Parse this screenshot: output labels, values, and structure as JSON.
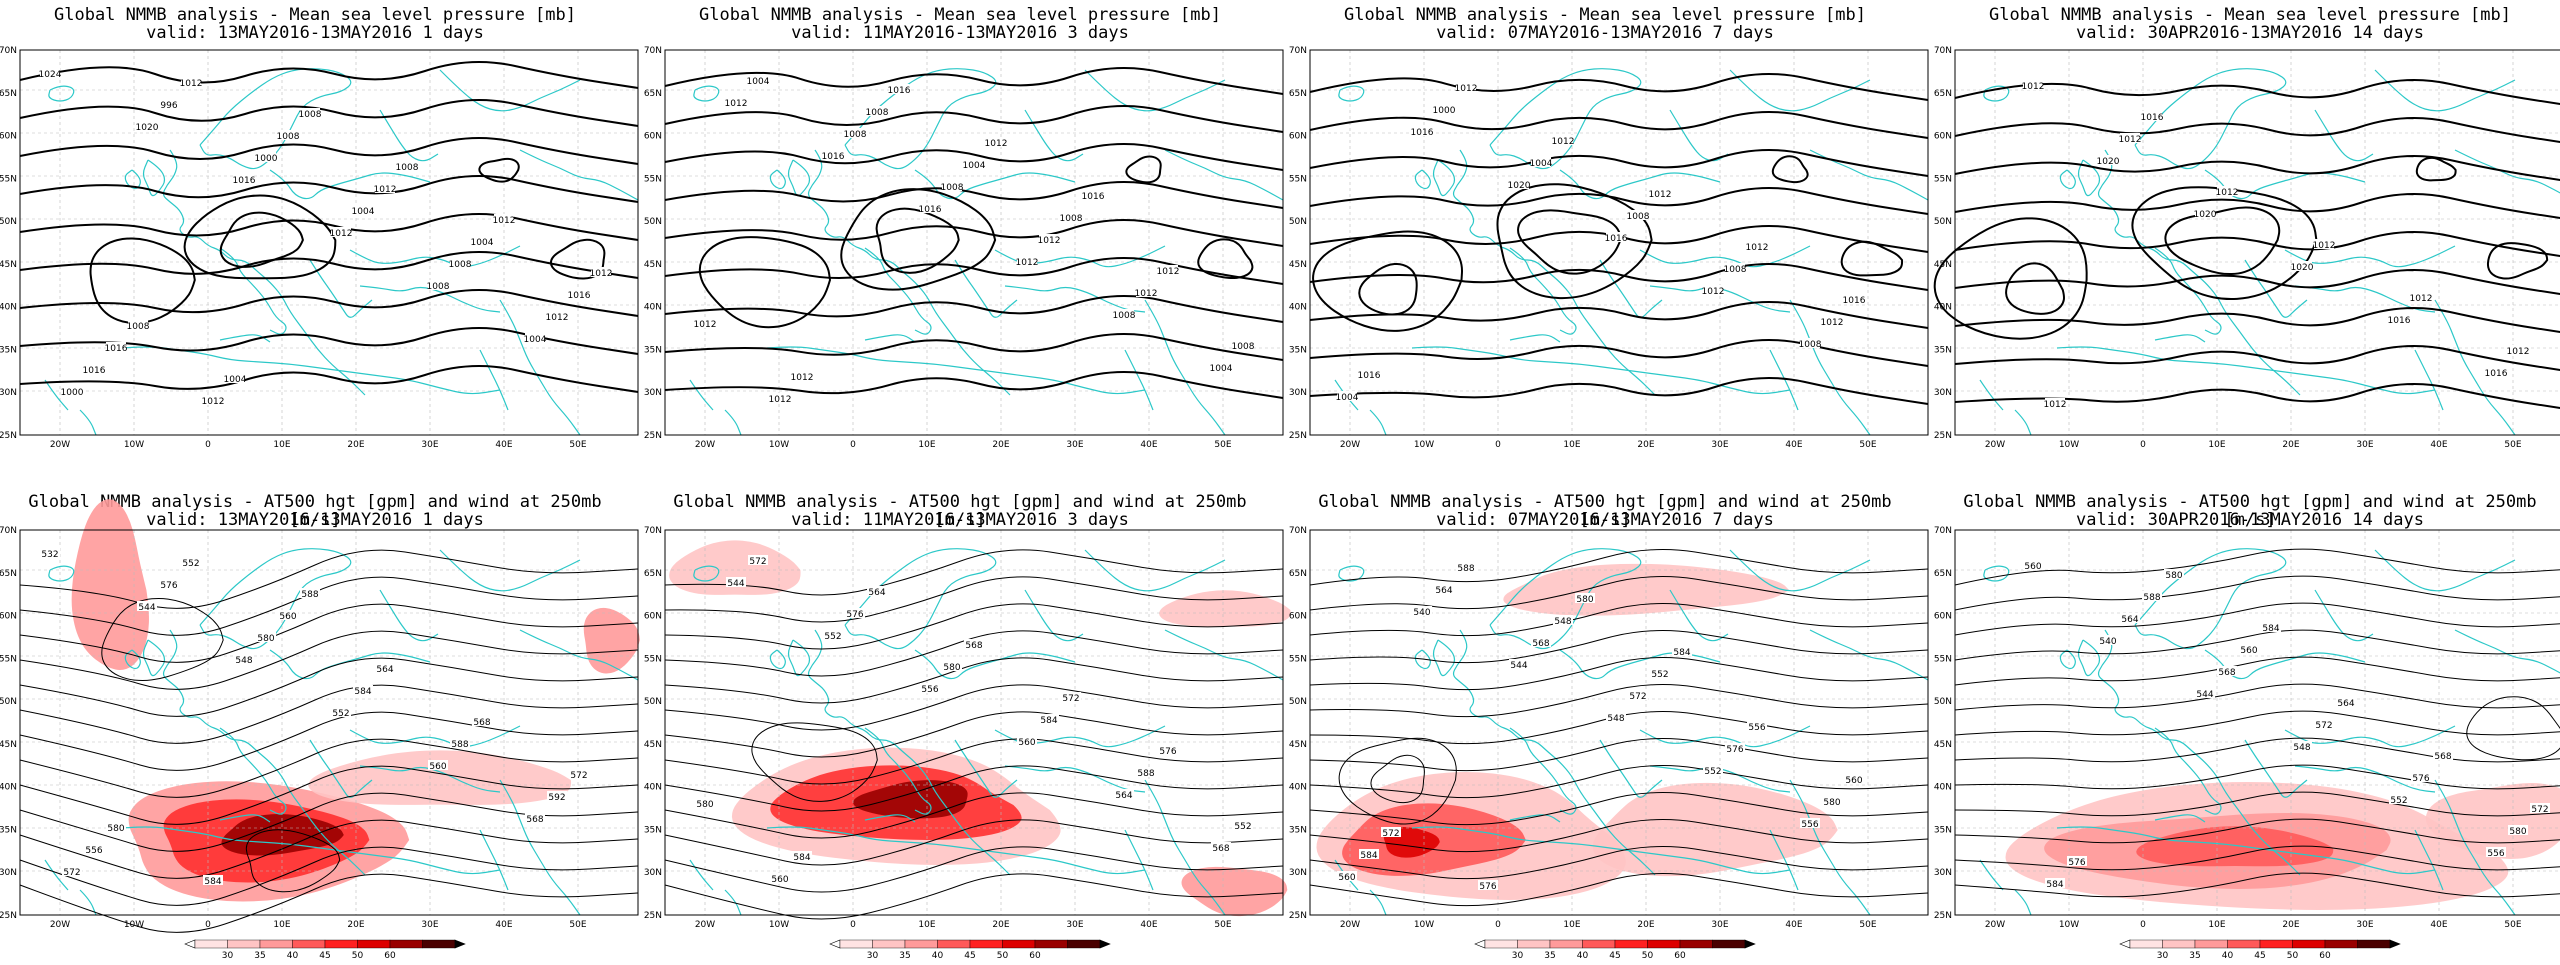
{
  "rows": {
    "mslp": {
      "title": "Global NMMB analysis - Mean sea level pressure [mb]",
      "panels": [
        {
          "valid": "valid: 13MAY2016-13MAY2016   1 days",
          "labels": [
            "1024",
            "1020",
            "1016",
            "1012",
            "1008",
            "1004",
            "1000",
            "996",
            "1000",
            "1004",
            "1008",
            "1012",
            "1016",
            "1012",
            "1008",
            "1012",
            "1004",
            "1016",
            "1016",
            "1012",
            "1008",
            "1008",
            "1012",
            "1012",
            "1008",
            "1004"
          ]
        },
        {
          "valid": "valid: 11MAY2016-13MAY2016   3 days",
          "labels": [
            "1012",
            "1016",
            "1016",
            "1012",
            "1008",
            "1004",
            "1004",
            "1008",
            "1008",
            "1012",
            "1012",
            "1008",
            "1012",
            "1008",
            "1004",
            "1008",
            "1012",
            "1012",
            "1012",
            "1016",
            "1012",
            "1016"
          ]
        },
        {
          "valid": "valid: 07MAY2016-13MAY2016   7 days",
          "labels": [
            "1016",
            "1020",
            "1016",
            "1012",
            "1008",
            "1004",
            "1000",
            "1004",
            "1008",
            "1008",
            "1012",
            "1016",
            "1012",
            "1012",
            "1012",
            "1012",
            "1016"
          ]
        },
        {
          "valid": "valid: 30APR2016-13MAY2016  14 days",
          "labels": [
            "1020",
            "1020",
            "1020",
            "1016",
            "1016",
            "1012",
            "1012",
            "1012",
            "1012",
            "1012",
            "1012",
            "1012",
            "1016"
          ]
        }
      ]
    },
    "z500": {
      "title": "Global NMMB analysis - AT500 hgt [gpm] and wind at 250mb [m/s]",
      "panels": [
        {
          "valid": "valid: 13MAY2016-13MAY2016   1 days",
          "labels": [
            "532",
            "544",
            "548",
            "552",
            "560",
            "568",
            "572",
            "576",
            "580",
            "584",
            "588",
            "592",
            "556",
            "552",
            "560",
            "564",
            "568",
            "572",
            "580",
            "584",
            "588"
          ]
        },
        {
          "valid": "valid: 11MAY2016-13MAY2016   3 days",
          "labels": [
            "544",
            "552",
            "556",
            "560",
            "564",
            "568",
            "572",
            "576",
            "580",
            "584",
            "588",
            "552",
            "560",
            "564",
            "568",
            "572",
            "576",
            "580",
            "584"
          ]
        },
        {
          "valid": "valid: 07MAY2016-13MAY2016   7 days",
          "labels": [
            "540",
            "544",
            "548",
            "552",
            "556",
            "560",
            "564",
            "568",
            "572",
            "576",
            "580",
            "584",
            "588",
            "548",
            "552",
            "556",
            "560",
            "572",
            "576",
            "580",
            "584"
          ]
        },
        {
          "valid": "valid: 30APR2016-13MAY2016  14 days",
          "labels": [
            "540",
            "544",
            "548",
            "552",
            "556",
            "560",
            "564",
            "568",
            "572",
            "576",
            "580",
            "584",
            "588",
            "560",
            "564",
            "568",
            "572",
            "576",
            "580",
            "584"
          ]
        }
      ]
    }
  },
  "lat_ticks": [
    "70N",
    "65N",
    "60N",
    "55N",
    "50N",
    "45N",
    "40N",
    "35N",
    "30N",
    "25N"
  ],
  "lon_ticks": [
    "20W",
    "10W",
    "0",
    "10E",
    "20E",
    "30E",
    "40E",
    "50E"
  ],
  "colorbar": {
    "ticks": [
      "30",
      "35",
      "40",
      "45",
      "50",
      "60"
    ],
    "colors": [
      "#ffe3e3",
      "#ffc4c4",
      "#ff9a9a",
      "#ff5a5a",
      "#ff2020",
      "#dd0000",
      "#990000",
      "#4a0000"
    ]
  },
  "colors": {
    "coast": "#2cc8c8",
    "contour": "#000000",
    "grid": "#bbbbbb"
  }
}
